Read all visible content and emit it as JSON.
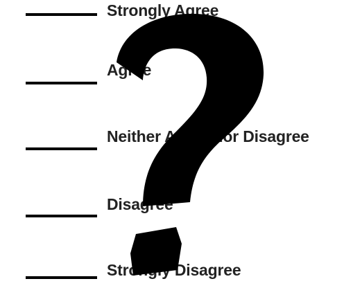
{
  "options": [
    {
      "label": "Strongly Agree"
    },
    {
      "label": "Agree"
    },
    {
      "label": "Neither Agree nor Disagree"
    },
    {
      "label": "Disagree"
    },
    {
      "label": "Strongly Disagree"
    }
  ],
  "colors": {
    "line": "#000000",
    "text": "#222222",
    "question_mark": "#000000",
    "background": "#ffffff"
  },
  "overlay_icon": "question-mark-icon"
}
